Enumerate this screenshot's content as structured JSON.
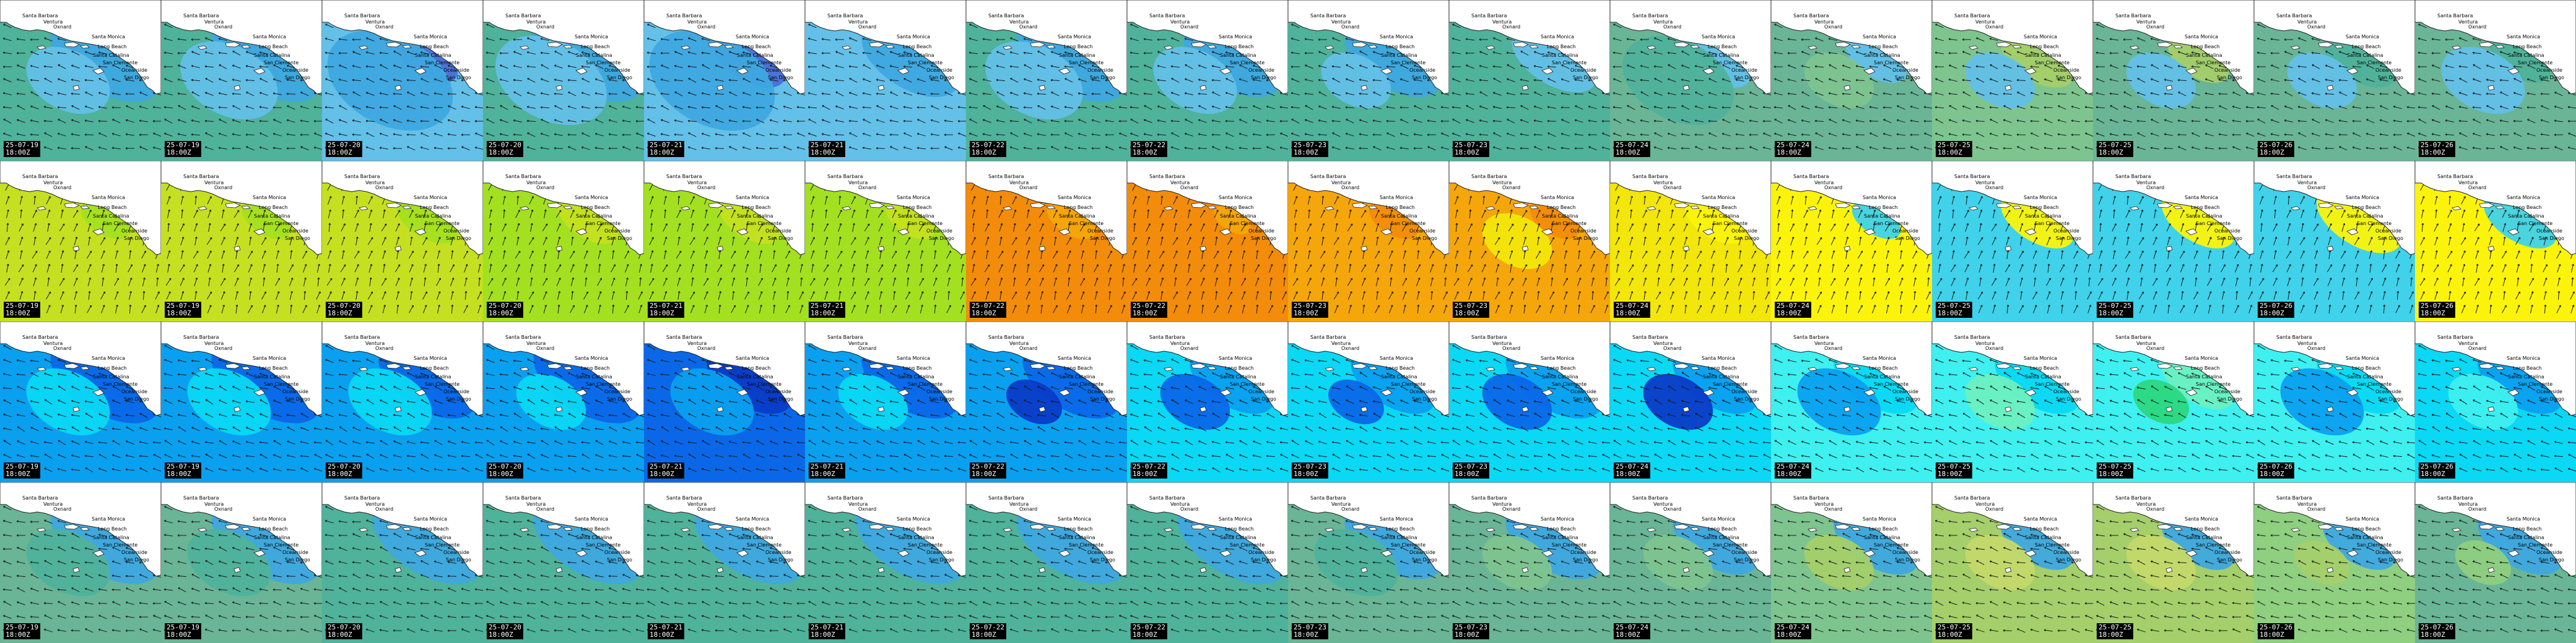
{
  "places": [
    "Santa Barbara",
    "Ventura",
    "Oxnard",
    "Santa Monica",
    "Long Beach",
    "Santa Catalina",
    "San Clemente",
    "Oceanside",
    "San Diego"
  ],
  "colors": {
    "land": "#ffffff",
    "rows": [
      [
        "#4a6fd6",
        "#3ea8e0",
        "#63c0e8",
        "#4fb29a",
        "#69b596",
        "#7ec48f",
        "#a4cf6a"
      ],
      [
        "#c5e020",
        "#a3e020",
        "#f28c0a",
        "#f5a60a",
        "#f2e60a",
        "#fbf40a",
        "#3fd2ea"
      ],
      [
        "#0a3cc8",
        "#0a68e8",
        "#0aa0f0",
        "#0ad8f4",
        "#3ef0f0",
        "#6cf0c0",
        "#2bd880"
      ],
      [
        "#3ea8e0",
        "#4fb29a",
        "#69b596",
        "#7ec48f",
        "#a4cf6a",
        "#c5d86a",
        "#8fcf80"
      ]
    ]
  },
  "rows": [
    {
      "name": "row-1",
      "tiles": [
        {
          "date": "25-07-19",
          "time": "18:00Z",
          "bg": 3,
          "zones": [
            [
              1,
              0.9
            ],
            [
              2,
              0.6
            ]
          ]
        },
        {
          "date": "25-07-19",
          "time": "18:00Z",
          "bg": 3,
          "zones": [
            [
              1,
              0.9
            ],
            [
              2,
              0.7
            ]
          ]
        },
        {
          "date": "25-07-20",
          "time": "18:00Z",
          "bg": 2,
          "zones": [
            [
              0,
              0.5
            ],
            [
              1,
              0.9
            ]
          ]
        },
        {
          "date": "25-07-20",
          "time": "18:00Z",
          "bg": 3,
          "zones": [
            [
              1,
              0.9
            ],
            [
              2,
              0.8
            ]
          ]
        },
        {
          "date": "25-07-21",
          "time": "18:00Z",
          "bg": 2,
          "zones": [
            [
              0,
              0.6
            ],
            [
              1,
              0.9
            ]
          ]
        },
        {
          "date": "25-07-21",
          "time": "18:00Z",
          "bg": 2,
          "zones": [
            [
              1,
              0.8
            ]
          ]
        },
        {
          "date": "25-07-22",
          "time": "18:00Z",
          "bg": 3,
          "zones": [
            [
              1,
              0.9
            ],
            [
              2,
              0.7
            ]
          ]
        },
        {
          "date": "25-07-22",
          "time": "18:00Z",
          "bg": 3,
          "zones": [
            [
              1,
              0.8
            ],
            [
              2,
              0.6
            ]
          ]
        },
        {
          "date": "25-07-23",
          "time": "18:00Z",
          "bg": 3,
          "zones": [
            [
              1,
              0.8
            ],
            [
              2,
              0.5
            ]
          ]
        },
        {
          "date": "25-07-23",
          "time": "18:00Z",
          "bg": 3,
          "zones": [
            [
              2,
              0.7
            ]
          ]
        },
        {
          "date": "25-07-24",
          "time": "18:00Z",
          "bg": 4,
          "zones": [
            [
              2,
              0.6
            ],
            [
              3,
              0.8
            ]
          ]
        },
        {
          "date": "25-07-24",
          "time": "18:00Z",
          "bg": 4,
          "zones": [
            [
              2,
              0.5
            ],
            [
              5,
              0.5
            ]
          ]
        },
        {
          "date": "25-07-25",
          "time": "18:00Z",
          "bg": 5,
          "zones": [
            [
              6,
              0.6
            ],
            [
              2,
              0.5
            ]
          ]
        },
        {
          "date": "25-07-25",
          "time": "18:00Z",
          "bg": 4,
          "zones": [
            [
              6,
              0.5
            ],
            [
              2,
              0.5
            ]
          ]
        },
        {
          "date": "25-07-26",
          "time": "18:00Z",
          "bg": 4,
          "zones": [
            [
              3,
              0.6
            ],
            [
              2,
              0.5
            ]
          ]
        },
        {
          "date": "25-07-26",
          "time": "18:00Z",
          "bg": 4,
          "zones": [
            [
              3,
              0.5
            ],
            [
              2,
              0.6
            ]
          ]
        }
      ]
    },
    {
      "name": "row-2",
      "tiles": [
        {
          "date": "25-07-19",
          "time": "18:00Z",
          "bg": 0,
          "zones": [
            [
              1,
              0.4
            ]
          ]
        },
        {
          "date": "25-07-19",
          "time": "18:00Z",
          "bg": 0,
          "zones": [
            [
              1,
              0.4
            ]
          ]
        },
        {
          "date": "25-07-20",
          "time": "18:00Z",
          "bg": 0,
          "zones": [
            [
              1,
              0.5
            ]
          ]
        },
        {
          "date": "25-07-20",
          "time": "18:00Z",
          "bg": 1,
          "zones": [
            [
              0,
              0.5
            ]
          ]
        },
        {
          "date": "25-07-21",
          "time": "18:00Z",
          "bg": 1,
          "zones": [
            [
              0,
              0.5
            ]
          ]
        },
        {
          "date": "25-07-21",
          "time": "18:00Z",
          "bg": 1,
          "zones": [
            [
              0,
              0.4
            ]
          ]
        },
        {
          "date": "25-07-22",
          "time": "18:00Z",
          "bg": 2,
          "zones": [
            [
              3,
              0.4
            ]
          ]
        },
        {
          "date": "25-07-22",
          "time": "18:00Z",
          "bg": 2,
          "zones": [
            [
              3,
              0.3
            ]
          ]
        },
        {
          "date": "25-07-23",
          "time": "18:00Z",
          "bg": 3,
          "zones": [
            [
              2,
              0.4
            ]
          ]
        },
        {
          "date": "25-07-23",
          "time": "18:00Z",
          "bg": 3,
          "zones": [
            [
              2,
              0.4
            ],
            [
              4,
              0.5
            ]
          ]
        },
        {
          "date": "25-07-24",
          "time": "18:00Z",
          "bg": 4,
          "zones": [
            [
              5,
              0.5
            ]
          ]
        },
        {
          "date": "25-07-24",
          "time": "18:00Z",
          "bg": 5,
          "zones": [
            [
              6,
              0.4
            ]
          ]
        },
        {
          "date": "25-07-25",
          "time": "18:00Z",
          "bg": 6,
          "zones": [
            [
              5,
              0.6
            ]
          ]
        },
        {
          "date": "25-07-25",
          "time": "18:00Z",
          "bg": 6,
          "zones": [
            [
              5,
              0.6
            ]
          ]
        },
        {
          "date": "25-07-26",
          "time": "18:00Z",
          "bg": 6,
          "zones": [
            [
              5,
              0.7
            ]
          ]
        },
        {
          "date": "25-07-26",
          "time": "18:00Z",
          "bg": 5,
          "zones": [
            [
              6,
              0.6
            ]
          ]
        }
      ]
    },
    {
      "name": "row-3",
      "tiles": [
        {
          "date": "25-07-19",
          "time": "18:00Z",
          "bg": 2,
          "zones": [
            [
              1,
              0.9
            ],
            [
              3,
              0.6
            ]
          ]
        },
        {
          "date": "25-07-19",
          "time": "18:00Z",
          "bg": 2,
          "zones": [
            [
              1,
              0.9
            ],
            [
              3,
              0.6
            ]
          ]
        },
        {
          "date": "25-07-20",
          "time": "18:00Z",
          "bg": 2,
          "zones": [
            [
              1,
              0.8
            ],
            [
              3,
              0.6
            ]
          ]
        },
        {
          "date": "25-07-20",
          "time": "18:00Z",
          "bg": 2,
          "zones": [
            [
              1,
              0.9
            ],
            [
              3,
              0.5
            ]
          ]
        },
        {
          "date": "25-07-21",
          "time": "18:00Z",
          "bg": 1,
          "zones": [
            [
              0,
              0.7
            ],
            [
              2,
              0.6
            ]
          ]
        },
        {
          "date": "25-07-21",
          "time": "18:00Z",
          "bg": 2,
          "zones": [
            [
              1,
              0.8
            ],
            [
              3,
              0.5
            ]
          ]
        },
        {
          "date": "25-07-22",
          "time": "18:00Z",
          "bg": 2,
          "zones": [
            [
              1,
              0.8
            ],
            [
              0,
              0.4
            ]
          ]
        },
        {
          "date": "25-07-22",
          "time": "18:00Z",
          "bg": 3,
          "zones": [
            [
              2,
              0.7
            ],
            [
              1,
              0.5
            ]
          ]
        },
        {
          "date": "25-07-23",
          "time": "18:00Z",
          "bg": 3,
          "zones": [
            [
              2,
              0.7
            ],
            [
              1,
              0.4
            ]
          ]
        },
        {
          "date": "25-07-23",
          "time": "18:00Z",
          "bg": 3,
          "zones": [
            [
              2,
              0.8
            ],
            [
              1,
              0.5
            ]
          ]
        },
        {
          "date": "25-07-24",
          "time": "18:00Z",
          "bg": 3,
          "zones": [
            [
              2,
              0.7
            ],
            [
              0,
              0.5
            ]
          ]
        },
        {
          "date": "25-07-24",
          "time": "18:00Z",
          "bg": 4,
          "zones": [
            [
              3,
              0.7
            ],
            [
              2,
              0.6
            ]
          ]
        },
        {
          "date": "25-07-25",
          "time": "18:00Z",
          "bg": 4,
          "zones": [
            [
              3,
              0.7
            ],
            [
              5,
              0.5
            ]
          ]
        },
        {
          "date": "25-07-25",
          "time": "18:00Z",
          "bg": 4,
          "zones": [
            [
              5,
              0.6
            ],
            [
              6,
              0.4
            ]
          ]
        },
        {
          "date": "25-07-26",
          "time": "18:00Z",
          "bg": 4,
          "zones": [
            [
              3,
              0.7
            ],
            [
              2,
              0.6
            ]
          ]
        },
        {
          "date": "25-07-26",
          "time": "18:00Z",
          "bg": 3,
          "zones": [
            [
              2,
              0.7
            ],
            [
              4,
              0.5
            ]
          ]
        }
      ]
    },
    {
      "name": "row-4",
      "tiles": [
        {
          "date": "25-07-19",
          "time": "18:00Z",
          "bg": 2,
          "zones": [
            [
              0,
              0.9
            ],
            [
              1,
              0.6
            ]
          ]
        },
        {
          "date": "25-07-19",
          "time": "18:00Z",
          "bg": 2,
          "zones": [
            [
              0,
              0.9
            ],
            [
              1,
              0.6
            ]
          ]
        },
        {
          "date": "25-07-20",
          "time": "18:00Z",
          "bg": 1,
          "zones": [
            [
              0,
              0.9
            ]
          ]
        },
        {
          "date": "25-07-20",
          "time": "18:00Z",
          "bg": 1,
          "zones": [
            [
              0,
              0.9
            ]
          ]
        },
        {
          "date": "25-07-21",
          "time": "18:00Z",
          "bg": 1,
          "zones": [
            [
              0,
              0.9
            ]
          ]
        },
        {
          "date": "25-07-21",
          "time": "18:00Z",
          "bg": 1,
          "zones": [
            [
              0,
              0.9
            ]
          ]
        },
        {
          "date": "25-07-22",
          "time": "18:00Z",
          "bg": 1,
          "zones": [
            [
              0,
              0.9
            ]
          ]
        },
        {
          "date": "25-07-22",
          "time": "18:00Z",
          "bg": 1,
          "zones": [
            [
              0,
              0.9
            ]
          ]
        },
        {
          "date": "25-07-23",
          "time": "18:00Z",
          "bg": 2,
          "zones": [
            [
              0,
              0.8
            ],
            [
              1,
              0.6
            ]
          ]
        },
        {
          "date": "25-07-23",
          "time": "18:00Z",
          "bg": 2,
          "zones": [
            [
              0,
              0.8
            ],
            [
              3,
              0.5
            ]
          ]
        },
        {
          "date": "25-07-24",
          "time": "18:00Z",
          "bg": 2,
          "zones": [
            [
              0,
              0.7
            ],
            [
              3,
              0.5
            ]
          ]
        },
        {
          "date": "25-07-24",
          "time": "18:00Z",
          "bg": 3,
          "zones": [
            [
              0,
              0.7
            ],
            [
              4,
              0.5
            ]
          ]
        },
        {
          "date": "25-07-25",
          "time": "18:00Z",
          "bg": 4,
          "zones": [
            [
              0,
              0.6
            ],
            [
              5,
              0.5
            ]
          ]
        },
        {
          "date": "25-07-25",
          "time": "18:00Z",
          "bg": 4,
          "zones": [
            [
              0,
              0.6
            ],
            [
              5,
              0.5
            ]
          ]
        },
        {
          "date": "25-07-26",
          "time": "18:00Z",
          "bg": 6,
          "zones": [
            [
              0,
              0.6
            ],
            [
              4,
              0.4
            ]
          ]
        },
        {
          "date": "25-07-26",
          "time": "18:00Z",
          "bg": 2,
          "zones": [
            [
              0,
              0.7
            ],
            [
              6,
              0.4
            ]
          ]
        }
      ]
    }
  ]
}
